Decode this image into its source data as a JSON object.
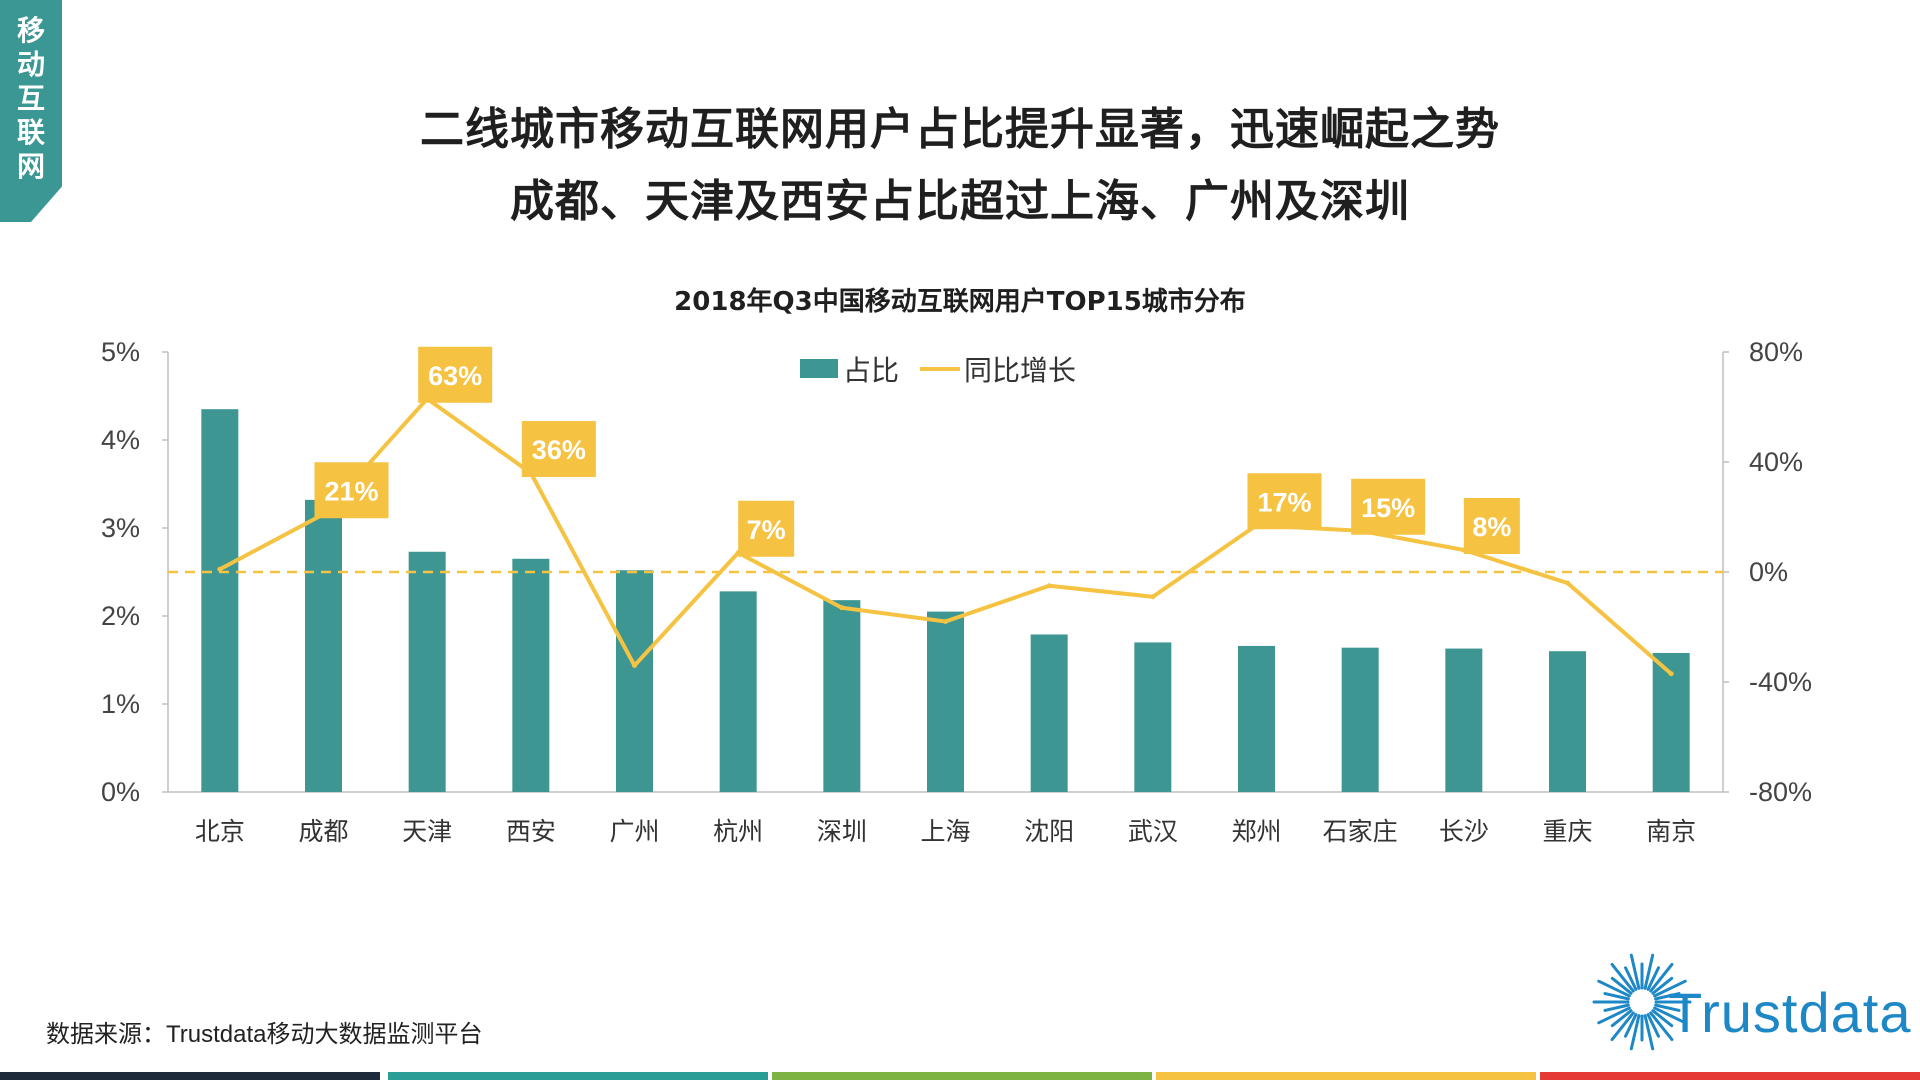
{
  "side_tab": [
    "移",
    "动",
    "互",
    "联",
    "网"
  ],
  "headline": {
    "line1": "二线城市移动互联网用户占比提升显著，迅速崛起之势",
    "line2": "成都、天津及西安占比超过上海、广州及深圳"
  },
  "source": "数据来源：Trustdata移动大数据监测平台",
  "logo": {
    "text": "Trustdata",
    "icon": "sunburst-logo-icon",
    "color": "#1e88c7"
  },
  "footer_colors": [
    "#1e2a3a",
    "#2a9d96",
    "#7cb342",
    "#f5c242",
    "#e53935"
  ],
  "chart_data": {
    "type": "bar+line",
    "title": "2018年Q3中国移动互联网用户TOP15城市分布",
    "categories": [
      "北京",
      "成都",
      "天津",
      "西安",
      "广州",
      "杭州",
      "深圳",
      "上海",
      "沈阳",
      "武汉",
      "郑州",
      "石家庄",
      "长沙",
      "重庆",
      "南京"
    ],
    "series": [
      {
        "name": "占比",
        "kind": "bar",
        "axis": "left",
        "color": "#3d9691",
        "values": [
          4.35,
          3.32,
          2.73,
          2.65,
          2.52,
          2.28,
          2.18,
          2.05,
          1.79,
          1.7,
          1.66,
          1.64,
          1.63,
          1.6,
          1.58
        ]
      },
      {
        "name": "同比增长",
        "kind": "line",
        "axis": "right",
        "color": "#f5c242",
        "values": [
          1,
          21,
          63,
          36,
          -34,
          7,
          -13,
          -18,
          -5,
          -9,
          17,
          15,
          8,
          -4,
          -37
        ],
        "labels": [
          "",
          "21%",
          "63%",
          "36%",
          "",
          "7%",
          "",
          "",
          "",
          "",
          "17%",
          "15%",
          "8%",
          "",
          ""
        ]
      }
    ],
    "y_left": {
      "range": [
        0,
        5
      ],
      "ticks": [
        "0%",
        "1%",
        "2%",
        "3%",
        "4%",
        "5%"
      ]
    },
    "y_right": {
      "range": [
        -80,
        80
      ],
      "ticks": [
        "-80%",
        "-40%",
        "0%",
        "40%",
        "80%"
      ]
    },
    "zero_line": {
      "axis": "right",
      "value": 0,
      "style": "dashed",
      "color": "#f5c242"
    },
    "legend": {
      "position": "top-center"
    }
  }
}
